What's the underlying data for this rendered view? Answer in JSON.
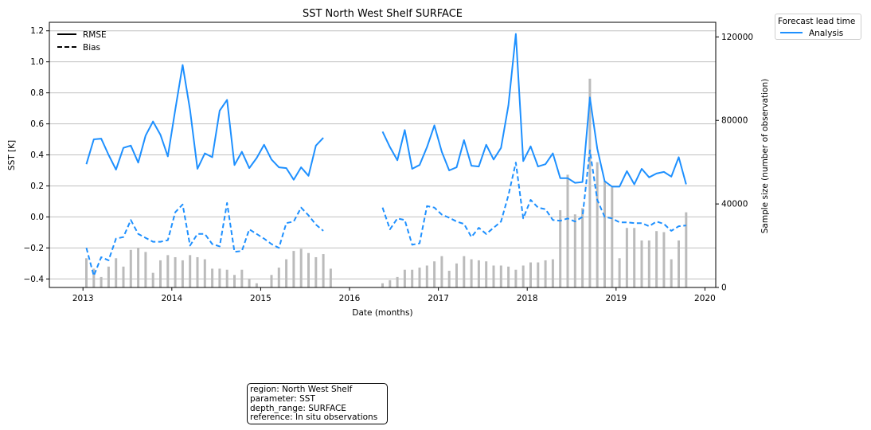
{
  "chart_data": {
    "type": "line",
    "title": "SST North West Shelf SURFACE",
    "xlabel": "Date (months)",
    "ylabel": "SST [K]",
    "y2label": "Sample size (number of observation)",
    "x_ticks": [
      "2013",
      "2014",
      "2015",
      "2016",
      "2017",
      "2018",
      "2019",
      "2020"
    ],
    "xlim": [
      "2012-08-15",
      "2020-02-15"
    ],
    "ylim": [
      -0.455,
      1.255
    ],
    "y_ticks": [
      "−0.4",
      "−0.2",
      "0.0",
      "0.2",
      "0.4",
      "0.6",
      "0.8",
      "1.0",
      "1.2"
    ],
    "y2lim": [
      0,
      127000
    ],
    "y2_ticks": [
      "0",
      "40000",
      "80000",
      "120000"
    ],
    "grid": "horizontal",
    "style_legend": {
      "placement": "upper-left",
      "entries": [
        {
          "label": "RMSE",
          "style": "solid"
        },
        {
          "label": "Bias",
          "style": "dashed"
        }
      ]
    },
    "lead_legend": {
      "title": "Forecast lead time",
      "placement": "outside-top-right",
      "entries": [
        {
          "label": "Analysis",
          "color": "#1e90ff"
        }
      ]
    },
    "dates": [
      "2013-01",
      "2013-02",
      "2013-03",
      "2013-04",
      "2013-05",
      "2013-06",
      "2013-07",
      "2013-08",
      "2013-09",
      "2013-10",
      "2013-11",
      "2013-12",
      "2014-01",
      "2014-02",
      "2014-03",
      "2014-04",
      "2014-05",
      "2014-06",
      "2014-07",
      "2014-08",
      "2014-09",
      "2014-10",
      "2014-11",
      "2014-12",
      "2015-01",
      "2015-02",
      "2015-03",
      "2015-04",
      "2015-05",
      "2015-06",
      "2015-07",
      "2015-08",
      "2015-09",
      "2015-10",
      "2015-11",
      "2015-12",
      "2016-01",
      "2016-02",
      "2016-03",
      "2016-04",
      "2016-05",
      "2016-06",
      "2016-07",
      "2016-08",
      "2016-09",
      "2016-10",
      "2016-11",
      "2016-12",
      "2017-01",
      "2017-02",
      "2017-03",
      "2017-04",
      "2017-05",
      "2017-06",
      "2017-07",
      "2017-08",
      "2017-09",
      "2017-10",
      "2017-11",
      "2017-12",
      "2018-01",
      "2018-02",
      "2018-03",
      "2018-04",
      "2018-05",
      "2018-06",
      "2018-07",
      "2018-08",
      "2018-09",
      "2018-10",
      "2018-11",
      "2018-12",
      "2019-01",
      "2019-02",
      "2019-03",
      "2019-04",
      "2019-05",
      "2019-06",
      "2019-07",
      "2019-08",
      "2019-09",
      "2019-10"
    ],
    "series": [
      {
        "name": "RMSE",
        "color": "#1e90ff",
        "style": "solid",
        "axis": "left",
        "values": [
          0.34,
          0.5,
          0.505,
          0.4,
          0.305,
          0.445,
          0.46,
          0.35,
          0.525,
          0.615,
          0.53,
          0.39,
          0.69,
          0.98,
          0.69,
          0.31,
          0.41,
          0.385,
          0.685,
          0.755,
          0.335,
          0.42,
          0.315,
          0.38,
          0.465,
          0.37,
          0.32,
          0.315,
          0.24,
          0.32,
          0.265,
          0.46,
          0.51,
          null,
          null,
          null,
          null,
          null,
          null,
          null,
          0.55,
          0.45,
          0.365,
          0.56,
          0.31,
          0.335,
          0.45,
          0.59,
          0.42,
          0.3,
          0.32,
          0.495,
          0.33,
          0.325,
          0.465,
          0.37,
          0.445,
          0.72,
          1.18,
          0.36,
          0.455,
          0.325,
          0.34,
          0.41,
          0.25,
          0.25,
          0.22,
          0.225,
          0.77,
          0.44,
          0.23,
          0.195,
          0.195,
          0.295,
          0.21,
          0.31,
          0.255,
          0.28,
          0.29,
          0.26,
          0.385,
          0.21
        ]
      },
      {
        "name": "Bias",
        "color": "#1e90ff",
        "style": "dashed",
        "axis": "left",
        "values": [
          -0.2,
          -0.38,
          -0.26,
          -0.28,
          -0.14,
          -0.13,
          -0.02,
          -0.11,
          -0.135,
          -0.16,
          -0.16,
          -0.15,
          0.03,
          0.08,
          -0.185,
          -0.11,
          -0.11,
          -0.175,
          -0.19,
          0.09,
          -0.225,
          -0.22,
          -0.08,
          -0.11,
          -0.14,
          -0.175,
          -0.2,
          -0.04,
          -0.03,
          0.06,
          0.01,
          -0.05,
          -0.09,
          null,
          null,
          null,
          null,
          null,
          null,
          null,
          0.06,
          -0.08,
          -0.01,
          -0.02,
          -0.18,
          -0.17,
          0.07,
          0.06,
          0.015,
          -0.005,
          -0.03,
          -0.045,
          -0.13,
          -0.07,
          -0.11,
          -0.07,
          -0.03,
          0.14,
          0.35,
          -0.01,
          0.11,
          0.06,
          0.05,
          -0.02,
          -0.025,
          -0.01,
          -0.03,
          0.0,
          0.43,
          0.11,
          0.0,
          -0.01,
          -0.035,
          -0.035,
          -0.04,
          -0.04,
          -0.06,
          -0.03,
          -0.045,
          -0.09,
          -0.06,
          -0.055
        ]
      },
      {
        "name": "Sample size",
        "color": "#bbbbbb",
        "type": "bar",
        "axis": "right",
        "values": [
          14000,
          9000,
          5000,
          10000,
          14000,
          10000,
          18000,
          19000,
          17000,
          7000,
          13000,
          15500,
          14500,
          13000,
          15500,
          14500,
          13500,
          9000,
          9000,
          8500,
          6000,
          8500,
          4000,
          2000,
          0,
          6000,
          9500,
          13500,
          17500,
          18500,
          16500,
          14500,
          16000,
          9000,
          null,
          null,
          null,
          null,
          null,
          null,
          2000,
          3500,
          5000,
          8500,
          8500,
          9500,
          10500,
          12500,
          15000,
          8000,
          11500,
          15000,
          13500,
          13000,
          12500,
          10500,
          10500,
          10000,
          8500,
          10500,
          12000,
          12000,
          13000,
          13500,
          37000,
          54000,
          35000,
          38000,
          100000,
          60000,
          51000,
          48000,
          14000,
          28500,
          28500,
          22500,
          22500,
          27000,
          26500,
          13500,
          22500,
          36000
        ]
      }
    ]
  },
  "info_box": {
    "lines": [
      "region: North West Shelf",
      "parameter: SST",
      "depth_range: SURFACE",
      "reference: In situ observations"
    ]
  }
}
